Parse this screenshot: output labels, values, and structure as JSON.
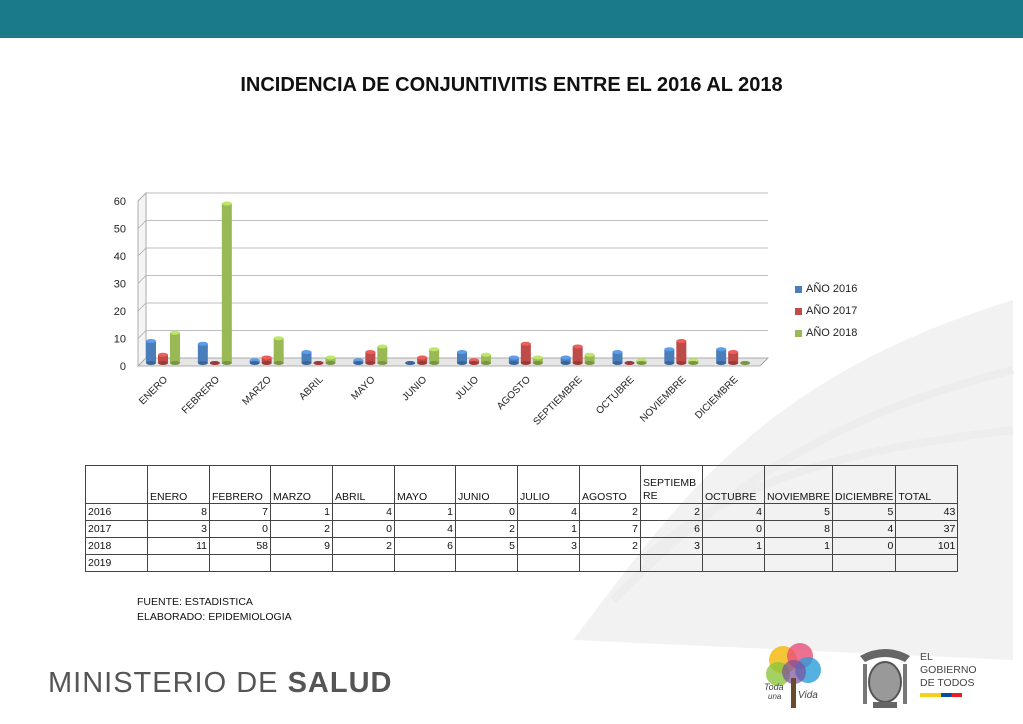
{
  "header": {
    "bar_color": "#1a7a8a"
  },
  "chart_data": {
    "type": "bar",
    "title": "INCIDENCIA DE CONJUNTIVITIS ENTRE EL 2016 AL 2018",
    "categories": [
      "ENERO",
      "FEBRERO",
      "MARZO",
      "ABRIL",
      "MAYO",
      "JUNIO",
      "JULIO",
      "AGOSTO",
      "SEPTIEMBRE",
      "OCTUBRE",
      "NOVIEMBRE",
      "DICIEMBRE"
    ],
    "series": [
      {
        "name": "AÑO 2016",
        "color": "#4a7ebb",
        "values": [
          8,
          7,
          1,
          4,
          1,
          0,
          4,
          2,
          2,
          4,
          5,
          5
        ]
      },
      {
        "name": "AÑO 2017",
        "color": "#be4b48",
        "values": [
          3,
          0,
          2,
          0,
          4,
          2,
          1,
          7,
          6,
          0,
          8,
          4
        ]
      },
      {
        "name": "AÑO 2018",
        "color": "#98b954",
        "values": [
          11,
          58,
          9,
          2,
          6,
          5,
          3,
          2,
          3,
          1,
          1,
          0
        ]
      }
    ],
    "ylim": [
      0,
      60
    ],
    "yticks": [
      "0",
      "10",
      "20",
      "30",
      "40",
      "50",
      "60"
    ],
    "legend_position": "right",
    "grid": true
  },
  "table": {
    "headers": [
      "",
      "ENERO",
      "FEBRERO",
      "MARZO",
      "ABRIL",
      "MAYO",
      "JUNIO",
      "JULIO",
      "AGOSTO",
      "SEPTIEMBRE",
      "OCTUBRE",
      "NOVIEMBRE",
      "DICIEMBRE",
      "TOTAL"
    ],
    "rows": [
      [
        "2016",
        "8",
        "7",
        "1",
        "4",
        "1",
        "0",
        "4",
        "2",
        "2",
        "4",
        "5",
        "5",
        "43"
      ],
      [
        "2017",
        "3",
        "0",
        "2",
        "0",
        "4",
        "2",
        "1",
        "7",
        "6",
        "0",
        "8",
        "4",
        "37"
      ],
      [
        "2018",
        "11",
        "58",
        "9",
        "2",
        "6",
        "5",
        "3",
        "2",
        "3",
        "1",
        "1",
        "0",
        "101"
      ],
      [
        "2019",
        "",
        "",
        "",
        "",
        "",
        "",
        "",
        "",
        "",
        "",
        "",
        "",
        ""
      ]
    ]
  },
  "footer": {
    "source": "FUENTE: ESTADISTICA",
    "elaborated": "ELABORADO: EPIDEMIOLOGIA",
    "ministry_light": "MINISTERIO DE ",
    "ministry_bold": "SALUD",
    "logo_text_1": "Toda",
    "logo_text_2": "una",
    "logo_text_3": "Vida",
    "gov_line1": "EL",
    "gov_line2": "GOBIERNO",
    "gov_line3": "DE TODOS"
  }
}
